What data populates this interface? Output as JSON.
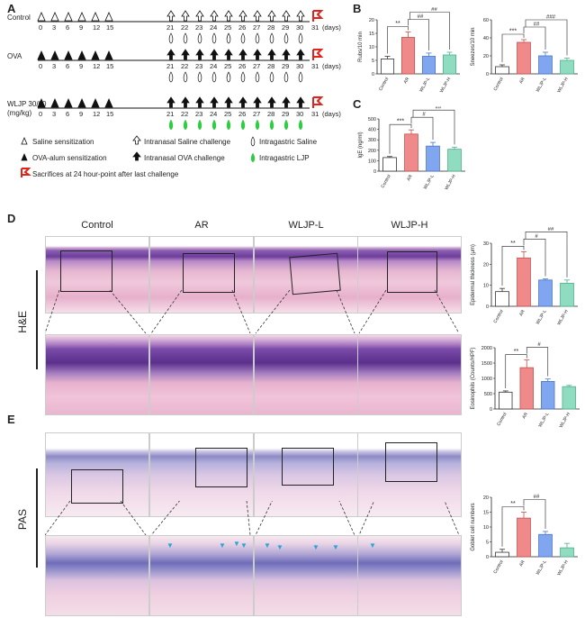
{
  "panels": {
    "A": "A",
    "B": "B",
    "C": "C",
    "D": "D",
    "E": "E"
  },
  "panelA": {
    "groups": [
      "Control",
      "OVA",
      "WLJP 30/60",
      "(mg/kg)"
    ],
    "sens_days": [
      "0",
      "3",
      "6",
      "9",
      "12",
      "15"
    ],
    "chal_days": [
      "21",
      "22",
      "23",
      "24",
      "25",
      "26",
      "27",
      "28",
      "29",
      "30",
      "31"
    ],
    "days_unit": "(days)",
    "legend": [
      "Saline sensitization",
      "Intranasal Saline challenge",
      "Intragastric Saline",
      "OVA-alum sensitization",
      "Intranasal OVA challenge",
      "Intragastric LJP",
      "Sacrifices at 24 hour-point after last challenge"
    ]
  },
  "colors": {
    "control": "#ffffff",
    "ar": "#f08a8a",
    "wljpl": "#7fa6ee",
    "wljph": "#8fdcc0",
    "red": "#e2231a",
    "green": "#2ecc40",
    "lightblue": "#2aa3d6"
  },
  "histology": {
    "columns": [
      "Control",
      "AR",
      "WLJP-L",
      "WLJP-H"
    ],
    "he_label": "H&E",
    "pas_label": "PAS"
  },
  "chart_data": [
    {
      "type": "bar",
      "panel": "B",
      "ylabel": "Rubs/10 min",
      "categories": [
        "Control",
        "AR",
        "WLJP-L",
        "WLJP-H"
      ],
      "values": [
        5.5,
        13.5,
        6.5,
        7
      ],
      "errors": [
        1,
        2,
        1.2,
        1
      ],
      "ylim": [
        0,
        20
      ],
      "yticks": [
        "0",
        "5",
        "10",
        "15",
        "20"
      ],
      "sig": [
        "**",
        "##",
        "##"
      ]
    },
    {
      "type": "bar",
      "panel": "B",
      "ylabel": "Sneezes/10 min",
      "categories": [
        "Control",
        "AR",
        "WLJP-L",
        "WLJP-H"
      ],
      "values": [
        8,
        35,
        20,
        15
      ],
      "errors": [
        2,
        3,
        4,
        2.5
      ],
      "ylim": [
        0,
        60
      ],
      "yticks": [
        "0",
        "20",
        "40",
        "60"
      ],
      "sig": [
        "***",
        "##",
        "###"
      ]
    },
    {
      "type": "bar",
      "panel": "C",
      "ylabel": "IgE (ng/ml)",
      "categories": [
        "Control",
        "AR",
        "WLJP-L",
        "WLJP-H"
      ],
      "values": [
        130,
        355,
        240,
        210
      ],
      "errors": [
        10,
        40,
        35,
        20
      ],
      "ylim": [
        0,
        500
      ],
      "yticks": [
        "0",
        "100",
        "200",
        "300",
        "400",
        "500"
      ],
      "sig": [
        "***",
        "#",
        "##"
      ]
    },
    {
      "type": "bar",
      "panel": "D",
      "ylabel": "Epidermal thickness (μm)",
      "categories": [
        "Control",
        "AR",
        "WLJP-L",
        "WLJP-H"
      ],
      "values": [
        7,
        23,
        12.5,
        11
      ],
      "errors": [
        1.5,
        3,
        0.5,
        1.5
      ],
      "ylim": [
        0,
        30
      ],
      "yticks": [
        "0",
        "10",
        "20",
        "30"
      ],
      "sig": [
        "**",
        "#",
        "##"
      ]
    },
    {
      "type": "bar",
      "panel": "D",
      "ylabel": "Eosinophils (Counts/HPF)",
      "categories": [
        "Control",
        "AR",
        "WLJP-L",
        "WLJP-H"
      ],
      "values": [
        550,
        1350,
        900,
        730
      ],
      "errors": [
        40,
        250,
        80,
        40
      ],
      "ylim": [
        0,
        2000
      ],
      "yticks": [
        "0",
        "500",
        "1000",
        "1500",
        "2000"
      ],
      "sig": [
        "**",
        "#"
      ]
    },
    {
      "type": "bar",
      "panel": "E",
      "ylabel": "Goblet cell numbers",
      "categories": [
        "Control",
        "AR",
        "WLJP-L",
        "WLJP-H"
      ],
      "values": [
        1.5,
        13,
        7.5,
        3
      ],
      "errors": [
        1,
        2,
        1,
        1.5
      ],
      "ylim": [
        0,
        20
      ],
      "yticks": [
        "0",
        "5",
        "10",
        "15",
        "20"
      ],
      "sig": [
        "**",
        "##"
      ]
    }
  ]
}
